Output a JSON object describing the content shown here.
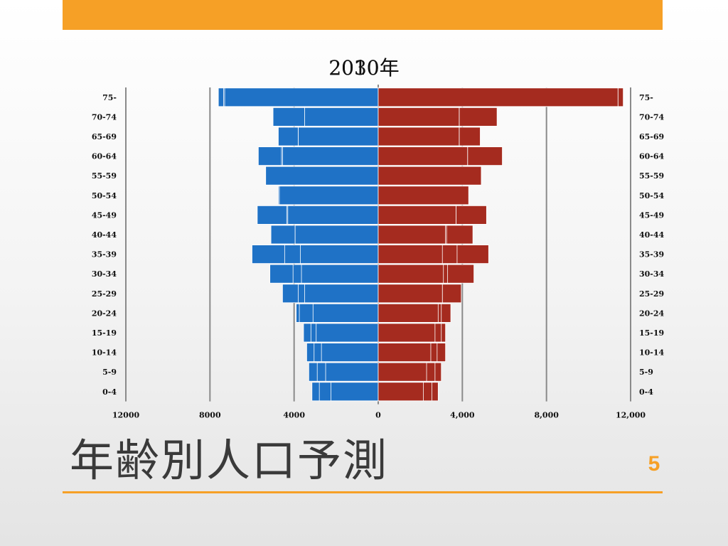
{
  "colors": {
    "accent": "#f6a026",
    "male": "#1f72c6",
    "female": "#a52b1f",
    "gridline": "#8a8a8a",
    "page_number": "#f6a026"
  },
  "slide": {
    "title": "年齢別人口予測",
    "page_number": "5"
  },
  "chart_data": {
    "type": "bar",
    "orientation": "horizontal",
    "subtype": "population-pyramid",
    "title": "2030年",
    "title_overlap": "2010年",
    "categories": [
      "75-",
      "70-74",
      "65-69",
      "60-64",
      "55-59",
      "50-54",
      "45-49",
      "40-44",
      "35-39",
      "30-34",
      "25-29",
      "20-24",
      "15-19",
      "10-14",
      "5-9",
      "0-4"
    ],
    "xlim_left": [
      0,
      12000
    ],
    "xlim_right": [
      0,
      12000
    ],
    "left_ticks": [
      "12000",
      "8000",
      "4000",
      "0"
    ],
    "right_ticks": [
      "0",
      "4,000",
      "8,000",
      "12,000"
    ],
    "grid": true,
    "series": [
      {
        "side": "left",
        "values": [
          7600,
          5000,
          4750,
          5700,
          5350,
          4750,
          5750,
          5100,
          6000,
          5150,
          4550,
          3900,
          3550,
          3400,
          3300,
          3150
        ]
      },
      {
        "side": "left",
        "values": [
          7350,
          3500,
          3800,
          4600,
          5350,
          4650,
          4350,
          3950,
          4450,
          4050,
          3800,
          3750,
          3200,
          3050,
          2900,
          2800
        ]
      },
      {
        "side": "left",
        "values": [
          7300,
          3500,
          3800,
          4550,
          5350,
          4700,
          4300,
          3950,
          3700,
          3650,
          3500,
          3100,
          2950,
          2700,
          2500,
          2250
        ]
      },
      {
        "side": "right",
        "values": [
          11650,
          5650,
          4850,
          5900,
          4900,
          4300,
          5150,
          4500,
          5250,
          4550,
          3950,
          3450,
          3200,
          3200,
          3000,
          2850
        ]
      },
      {
        "side": "right",
        "values": [
          11400,
          3850,
          3850,
          4250,
          4900,
          4300,
          3700,
          3250,
          3750,
          3300,
          3050,
          3000,
          3000,
          2800,
          2700,
          2550
        ]
      },
      {
        "side": "right",
        "values": [
          11400,
          3850,
          3850,
          4250,
          4900,
          4300,
          3700,
          3200,
          3050,
          3100,
          3050,
          2850,
          2700,
          2500,
          2300,
          2150
        ]
      }
    ]
  }
}
